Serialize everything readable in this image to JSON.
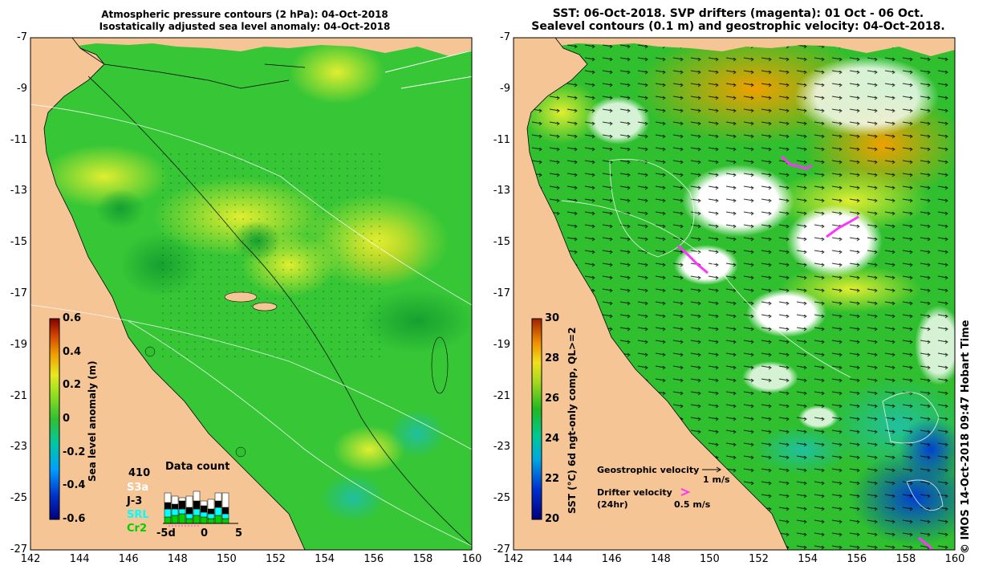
{
  "left_map": {
    "title_line1": "Atmospheric pressure contours (2 hPa): 04-Oct-2018",
    "title_line2": "Isostatically adjusted sea level anomaly: 04-Oct-2018",
    "colorbar_label": "Sea level anomaly (m)",
    "colorbar_ticks": [
      "0.6",
      "0.4",
      "0.2",
      "0",
      "-0.2",
      "-0.4",
      "-0.6"
    ],
    "data_count": {
      "title": "Data count",
      "max_value": "410",
      "satellites": [
        {
          "name": "S3a",
          "color": "#ffffff"
        },
        {
          "name": "J-3",
          "color": "#000000"
        },
        {
          "name": "SRL",
          "color": "#00ffff"
        },
        {
          "name": "Cr2",
          "color": "#00d000"
        }
      ],
      "x_ticks": [
        "-5d",
        "0",
        "5"
      ]
    }
  },
  "right_map": {
    "title_line1": "SST: 06-Oct-2018. SVP drifters (magenta): 01 Oct - 06 Oct.",
    "title_line2": "Sealevel contours (0.1 m) and geostrophic velocity: 04-Oct-2018.",
    "colorbar_label": "SST (°C) 6d ngt-only comp, QL>=2",
    "colorbar_ticks": [
      "30",
      "28",
      "26",
      "24",
      "22",
      "20"
    ],
    "legend": {
      "geostrophic_label": "Geostrophic velocity",
      "geostrophic_scale": "1 m/s",
      "drifter_label": "Drifter velocity",
      "drifter_sub": "(24hr)",
      "drifter_scale": "0.5 m/s"
    }
  },
  "axes": {
    "lat_ticks": [
      "-7",
      "-9",
      "-11",
      "-13",
      "-15",
      "-17",
      "-19",
      "-21",
      "-23",
      "-25",
      "-27"
    ],
    "lon_ticks": [
      "142",
      "144",
      "146",
      "148",
      "150",
      "152",
      "154",
      "156",
      "158",
      "160"
    ]
  },
  "credit": "©  IMOS 14-Oct-2018 09:47 Hobart Time",
  "colors": {
    "land": "#f5c596",
    "sea_base_left": "#34c834",
    "sea_base_right": "#2fbf2f",
    "drifter": "#ff33ff"
  }
}
